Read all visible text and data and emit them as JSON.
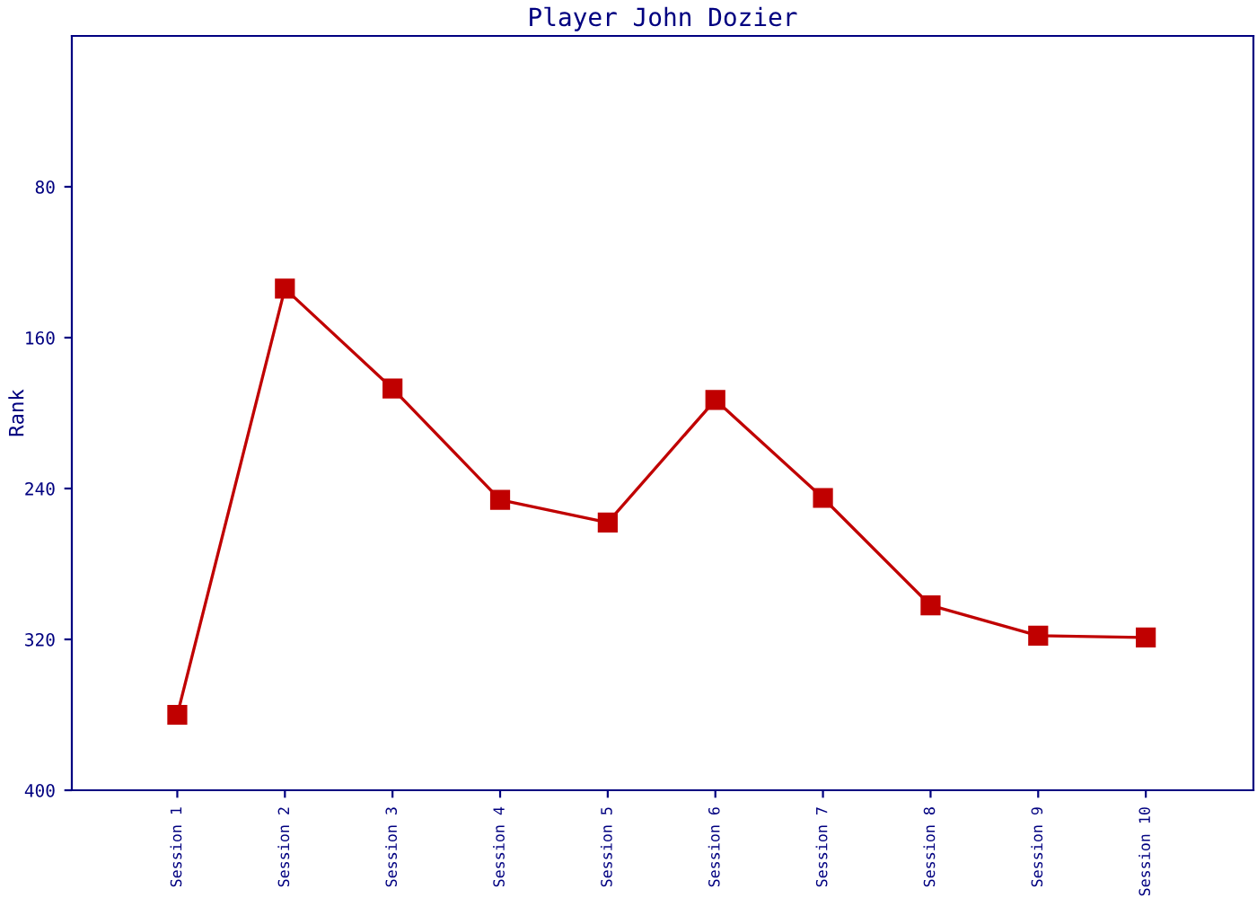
{
  "chart_data": {
    "type": "line",
    "title": "Player John Dozier",
    "ylabel": "Rank",
    "categories": [
      "Session 1",
      "Session 2",
      "Session 3",
      "Session 4",
      "Session 5",
      "Session 6",
      "Session 7",
      "Session 8",
      "Session 9",
      "Session 10"
    ],
    "series": [
      {
        "color": "#c00000",
        "values": [
          360,
          134,
          187,
          246,
          258,
          193,
          245,
          302,
          318,
          319
        ]
      }
    ],
    "ylim": [
      400,
      0
    ],
    "yticks": [
      80,
      160,
      240,
      320,
      400
    ],
    "marker": "square",
    "line_style": "solid",
    "grid": false
  }
}
